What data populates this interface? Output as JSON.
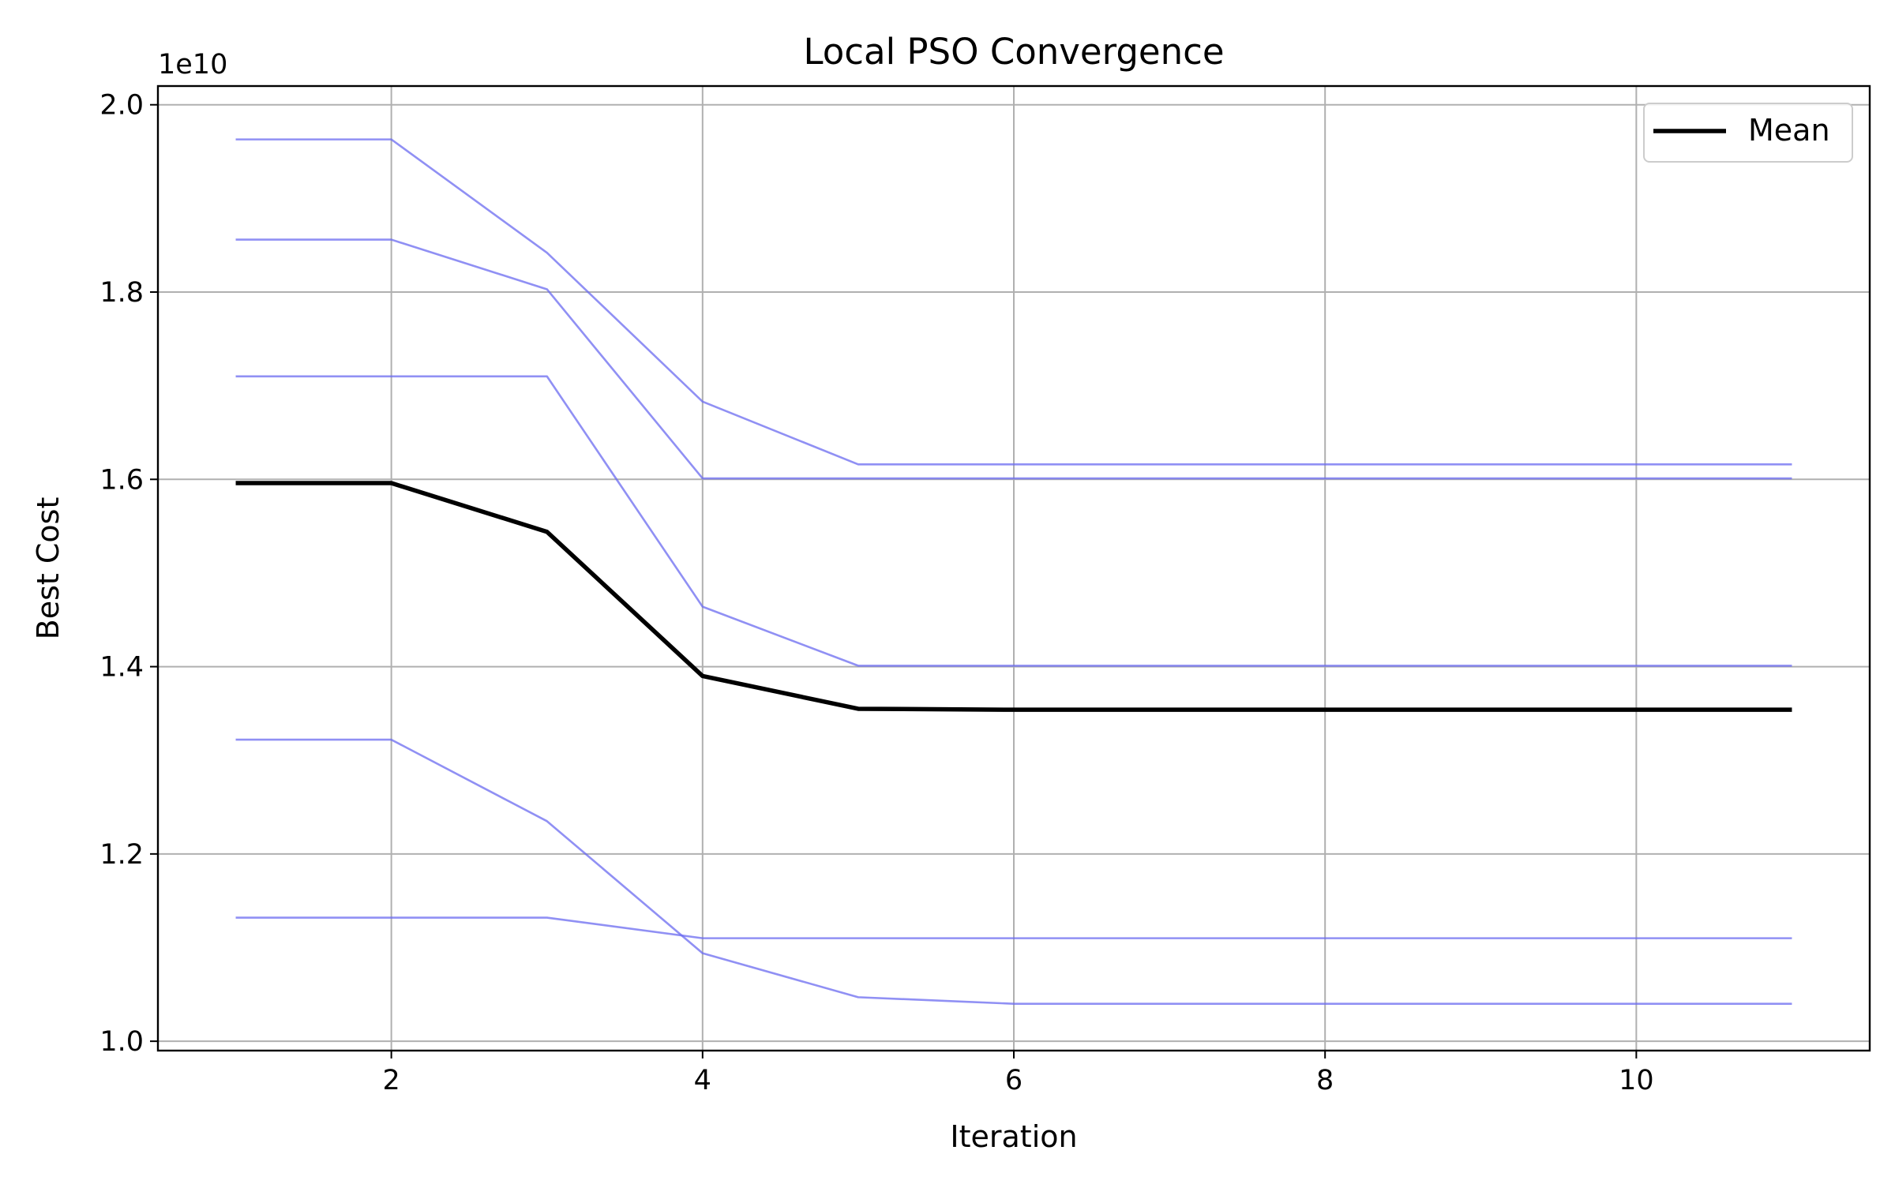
{
  "chart_data": {
    "type": "line",
    "title": "Local PSO Convergence",
    "xlabel": "Iteration",
    "ylabel": "Best Cost",
    "y_offset_label": "1e10",
    "y_scale_factor": 10000000000,
    "xlim": [
      0.5,
      11.5
    ],
    "ylim": [
      0.99,
      2.02
    ],
    "xticks": [
      2,
      4,
      6,
      8,
      10
    ],
    "xtick_labels": [
      "2",
      "4",
      "6",
      "8",
      "10"
    ],
    "yticks": [
      1.0,
      1.2,
      1.4,
      1.6,
      1.8,
      2.0
    ],
    "ytick_labels": [
      "1.0",
      "1.2",
      "1.4",
      "1.6",
      "1.8",
      "2.0"
    ],
    "grid": true,
    "legend_position": "top-right",
    "legend": [
      {
        "label": "Mean",
        "color": "#000000"
      }
    ],
    "x": [
      1,
      2,
      3,
      4,
      5,
      6,
      7,
      8,
      9,
      10,
      11
    ],
    "runs": {
      "color": "#6b6bf0",
      "series": [
        {
          "values": [
            1.963,
            1.963,
            1.842,
            1.683,
            1.616,
            1.616,
            1.616,
            1.616,
            1.616,
            1.616,
            1.616
          ]
        },
        {
          "values": [
            1.856,
            1.856,
            1.803,
            1.601,
            1.601,
            1.601,
            1.601,
            1.601,
            1.601,
            1.601,
            1.601
          ]
        },
        {
          "values": [
            1.71,
            1.71,
            1.71,
            1.464,
            1.401,
            1.401,
            1.401,
            1.401,
            1.401,
            1.401,
            1.401
          ]
        },
        {
          "values": [
            1.322,
            1.322,
            1.235,
            1.094,
            1.047,
            1.04,
            1.04,
            1.04,
            1.04,
            1.04,
            1.04
          ]
        },
        {
          "values": [
            1.132,
            1.132,
            1.132,
            1.11,
            1.11,
            1.11,
            1.11,
            1.11,
            1.11,
            1.11,
            1.11
          ]
        }
      ]
    },
    "mean": {
      "name": "Mean",
      "color": "#000000",
      "values": [
        1.596,
        1.596,
        1.544,
        1.39,
        1.355,
        1.354,
        1.354,
        1.354,
        1.354,
        1.354,
        1.354
      ]
    }
  }
}
